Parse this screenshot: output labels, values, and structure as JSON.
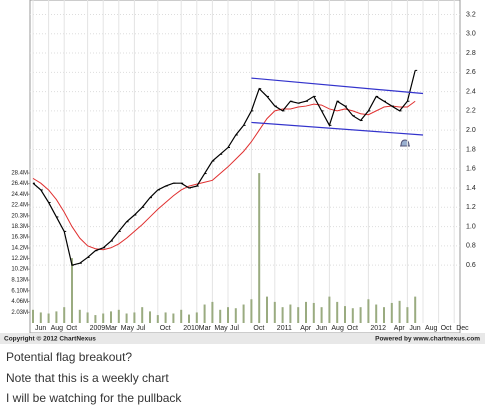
{
  "chart_data": {
    "type": "line",
    "categories": [
      "Jun",
      null,
      "Aug",
      null,
      "Oct",
      null,
      null,
      "2009",
      null,
      "Mar",
      null,
      "May",
      null,
      "Jul",
      null,
      null,
      "Oct",
      null,
      null,
      "2010",
      null,
      "Mar",
      null,
      "May",
      null,
      "Jul",
      null,
      null,
      "Oct",
      null,
      null,
      "2011",
      null,
      null,
      "Apr",
      null,
      "Jun",
      null,
      "Aug",
      null,
      "Oct",
      null,
      null,
      "2012",
      null,
      null,
      "Apr",
      null,
      "Jun",
      null,
      "Aug",
      null,
      "Oct",
      null,
      "Dec"
    ],
    "price": {
      "color": "#000000",
      "values": [
        1.45,
        1.38,
        1.25,
        1.1,
        0.95,
        0.6,
        0.62,
        0.68,
        0.75,
        0.78,
        0.85,
        0.95,
        1.05,
        1.12,
        1.2,
        1.3,
        1.38,
        1.42,
        1.45,
        1.45,
        1.4,
        1.42,
        1.55,
        1.68,
        1.75,
        1.82,
        1.95,
        2.05,
        2.2,
        2.43,
        2.35,
        2.25,
        2.2,
        2.3,
        2.28,
        2.3,
        2.35,
        2.2,
        2.05,
        2.3,
        2.25,
        2.15,
        2.1,
        2.2,
        2.35,
        2.3,
        2.25,
        2.2,
        2.3,
        2.62,
        null,
        null,
        null,
        null,
        null
      ]
    },
    "moving_average": {
      "color": "#e03030",
      "values": [
        1.5,
        1.45,
        1.38,
        1.28,
        1.15,
        1.0,
        0.88,
        0.8,
        0.77,
        0.76,
        0.78,
        0.82,
        0.88,
        0.95,
        1.02,
        1.1,
        1.18,
        1.25,
        1.32,
        1.38,
        1.42,
        1.44,
        1.46,
        1.48,
        1.55,
        1.62,
        1.7,
        1.78,
        1.88,
        2.0,
        2.12,
        2.2,
        2.22,
        2.22,
        2.24,
        2.25,
        2.27,
        2.26,
        2.22,
        2.2,
        2.22,
        2.2,
        2.17,
        2.16,
        2.2,
        2.24,
        2.25,
        2.24,
        2.24,
        2.3,
        null,
        null,
        null,
        null,
        null
      ]
    },
    "volume": {
      "color": "#9aab80",
      "axis": "y2",
      "values": [
        2.5,
        2,
        1.8,
        2.2,
        3,
        12.3,
        2.5,
        2,
        1.5,
        1.8,
        2.2,
        2.5,
        1.8,
        2,
        3,
        2.2,
        1.5,
        2,
        1.8,
        2.5,
        1.6,
        2,
        3.5,
        4,
        2.5,
        3,
        2.8,
        3.5,
        4.5,
        28.4,
        5,
        4,
        3,
        3.5,
        3,
        4,
        3.8,
        3,
        5,
        4,
        3.2,
        2.8,
        3,
        4.5,
        3.5,
        3,
        3.8,
        4.2,
        3,
        5,
        null,
        null,
        null,
        null,
        null
      ]
    },
    "channel": [
      {
        "color": "#3333cc",
        "start": 28,
        "end": 50,
        "values": [
          2.54,
          2.38
        ]
      },
      {
        "color": "#3333cc",
        "start": 28,
        "end": 50,
        "values": [
          2.08,
          1.95
        ]
      }
    ],
    "ylim": [
      0,
      3.35
    ],
    "yticks": [
      3.2,
      {
        "value": 3.0,
        "label": "3.0"
      },
      2.8,
      2.6,
      2.4,
      2.2,
      {
        "value": 2.0,
        "label": "2.0"
      },
      1.8,
      1.6,
      1.4,
      1.2,
      {
        "value": 1.0,
        "label": "1.0"
      },
      0.8,
      0.6
    ],
    "y2lim": [
      0,
      61.2
    ],
    "y2ticks": [
      {
        "value": 28.4,
        "label": "28.4M"
      },
      {
        "value": 26.4,
        "label": "26.4M"
      },
      {
        "value": 24.4,
        "label": "24.4M"
      },
      {
        "value": 22.4,
        "label": "22.4M"
      },
      {
        "value": 20.3,
        "label": "20.3M"
      },
      {
        "value": 18.3,
        "label": "18.3M"
      },
      {
        "value": 16.3,
        "label": "16.3M"
      },
      {
        "value": 14.2,
        "label": "14.2M"
      },
      {
        "value": 12.2,
        "label": "12.2M"
      },
      {
        "value": 10.2,
        "label": "10.2M"
      },
      {
        "value": 8.13,
        "label": "8.13M"
      },
      {
        "value": 6.1,
        "label": "6.10M"
      },
      {
        "value": 4.06,
        "label": "4.06M"
      },
      {
        "value": 2.03,
        "label": "2.03M"
      }
    ],
    "grid": true
  },
  "footer": {
    "copyright": "Copyright © 2012 ChartNexus",
    "powered": "Powered by www.chartnexus.com"
  },
  "post": {
    "lines": [
      "Potential flag breakout?",
      "Note that this is a weekly chart",
      "I will be watching for the pullback"
    ]
  }
}
